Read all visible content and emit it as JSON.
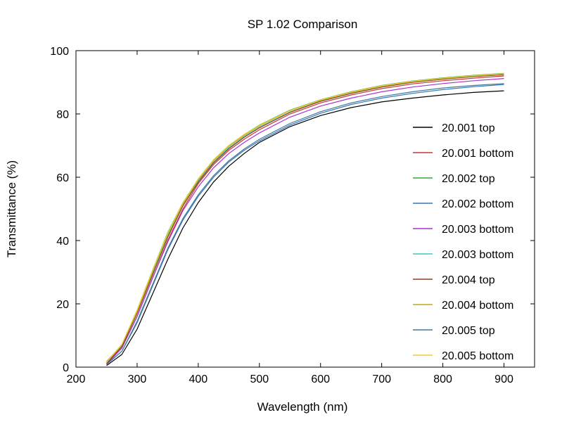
{
  "chart_data": {
    "type": "line",
    "title": "SP 1.02 Comparison",
    "xlabel": "Wavelength (nm)",
    "ylabel": "Transmittance (%)",
    "xlim": [
      200,
      950
    ],
    "ylim": [
      0,
      100
    ],
    "xticks": [
      200,
      300,
      400,
      500,
      600,
      700,
      800,
      900
    ],
    "yticks": [
      0,
      20,
      40,
      60,
      80,
      100
    ],
    "grid": false,
    "legend_position": "right",
    "x": [
      250,
      275,
      300,
      325,
      350,
      375,
      400,
      425,
      450,
      475,
      500,
      550,
      600,
      650,
      700,
      750,
      800,
      850,
      900
    ],
    "series": [
      {
        "name": "20.001 top",
        "color": "#000000",
        "values": [
          0.5,
          4,
          12,
          23,
          34,
          44,
          52,
          58.5,
          63.5,
          67.5,
          71,
          76,
          79.5,
          82,
          83.8,
          85,
          86,
          86.8,
          87.3
        ]
      },
      {
        "name": "20.001 bottom",
        "color": "#cc3333",
        "values": [
          1,
          6,
          16,
          28,
          40,
          50,
          58,
          64,
          68.5,
          72,
          75,
          80,
          83.5,
          86,
          88,
          89.5,
          90.5,
          91.3,
          92
        ]
      },
      {
        "name": "20.002 top",
        "color": "#33aa33",
        "values": [
          1.8,
          7,
          18,
          30.5,
          42.5,
          52,
          59.5,
          65.5,
          70,
          73.5,
          76.5,
          81.2,
          84.5,
          87,
          89,
          90.4,
          91.4,
          92.2,
          92.8
        ]
      },
      {
        "name": "20.002 bottom",
        "color": "#3377bb",
        "values": [
          1,
          5,
          14,
          25.5,
          37,
          46.5,
          54,
          60,
          64.8,
          68.5,
          71.5,
          76.5,
          80.2,
          83,
          85,
          86.5,
          87.7,
          88.6,
          89.3
        ]
      },
      {
        "name": "20.003 bottom",
        "color": "#aa33cc",
        "values": [
          1,
          6,
          16,
          28,
          39.5,
          49.5,
          57,
          63,
          67.5,
          71,
          74,
          79,
          82.5,
          85,
          87,
          88.5,
          89.6,
          90.5,
          91.2
        ]
      },
      {
        "name": "20.003 bottom",
        "color": "#33cccc",
        "values": [
          1.5,
          6.5,
          17,
          29.5,
          41.5,
          51,
          58.8,
          64.8,
          69.3,
          72.8,
          75.8,
          80.6,
          84,
          86.5,
          88.5,
          90,
          91,
          91.8,
          92.4
        ]
      },
      {
        "name": "20.004 top",
        "color": "#884422",
        "values": [
          1.2,
          6.5,
          17,
          29,
          41,
          51,
          58.5,
          64.5,
          69,
          72.6,
          75.6,
          80.5,
          84,
          86.5,
          88.5,
          90,
          91,
          91.8,
          92.4
        ]
      },
      {
        "name": "20.004 bottom",
        "color": "#bbaa22",
        "values": [
          1.5,
          7,
          17.5,
          30,
          42,
          51.5,
          59.2,
          65.2,
          69.7,
          73.2,
          76.2,
          81,
          84.3,
          86.8,
          88.8,
          90.2,
          91.2,
          92,
          92.6
        ]
      },
      {
        "name": "20.005 top",
        "color": "#447799",
        "values": [
          0.8,
          5,
          14.5,
          26,
          37.5,
          47,
          54.5,
          60.5,
          65.2,
          68.9,
          72,
          77,
          80.7,
          83.5,
          85.5,
          87,
          88.2,
          89,
          89.6
        ]
      },
      {
        "name": "20.005 bottom",
        "color": "#eecc33",
        "values": [
          1.6,
          7.2,
          18,
          30.5,
          42.3,
          52,
          59.5,
          65.5,
          70,
          73.5,
          76.4,
          81.1,
          84.4,
          86.9,
          88.9,
          90.3,
          91.3,
          92.1,
          92.7
        ]
      }
    ]
  }
}
